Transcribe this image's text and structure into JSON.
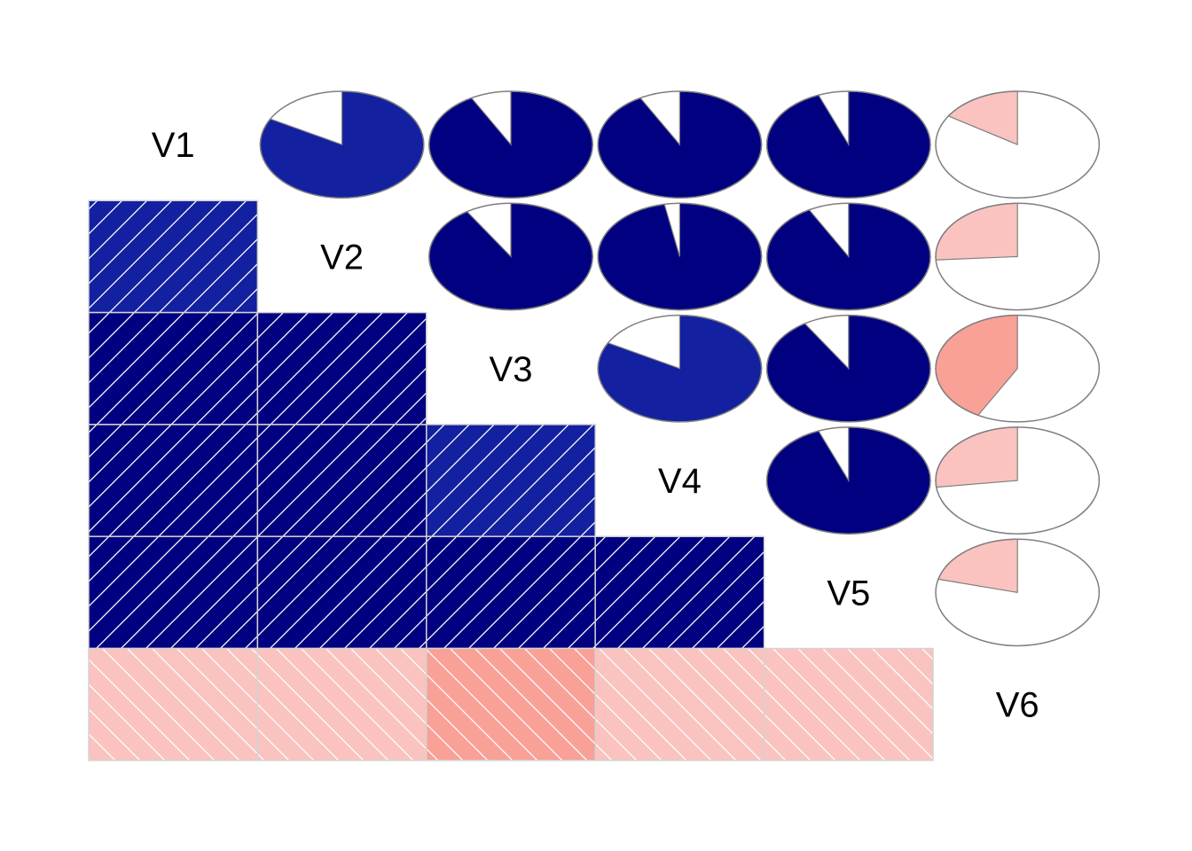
{
  "chart_data": {
    "type": "heatmap",
    "variables": [
      "V1",
      "V2",
      "V3",
      "V4",
      "V5",
      "V6"
    ],
    "lower_panel": "shade",
    "upper_panel": "pie",
    "correlation_matrix": [
      [
        1.0,
        0.83,
        0.92,
        0.92,
        0.94,
        -0.16
      ],
      [
        0.83,
        1.0,
        0.91,
        0.97,
        0.92,
        -0.26
      ],
      [
        0.92,
        0.91,
        1.0,
        0.83,
        0.91,
        -0.42
      ],
      [
        0.92,
        0.97,
        0.83,
        1.0,
        0.94,
        -0.27
      ],
      [
        0.94,
        0.92,
        0.91,
        0.94,
        1.0,
        -0.21
      ],
      [
        -0.16,
        -0.26,
        -0.42,
        -0.27,
        -0.21,
        1.0
      ]
    ],
    "colors": {
      "positive_strong": "#000080",
      "positive_medium": "#1320a0",
      "negative_weak": "#fac3bf",
      "negative_medium": "#f9a097",
      "pie_empty": "#ffffff",
      "pie_outline": "#7f7f7f",
      "cell_border": "#d3d3d3",
      "hatch": "#ffffff"
    }
  }
}
